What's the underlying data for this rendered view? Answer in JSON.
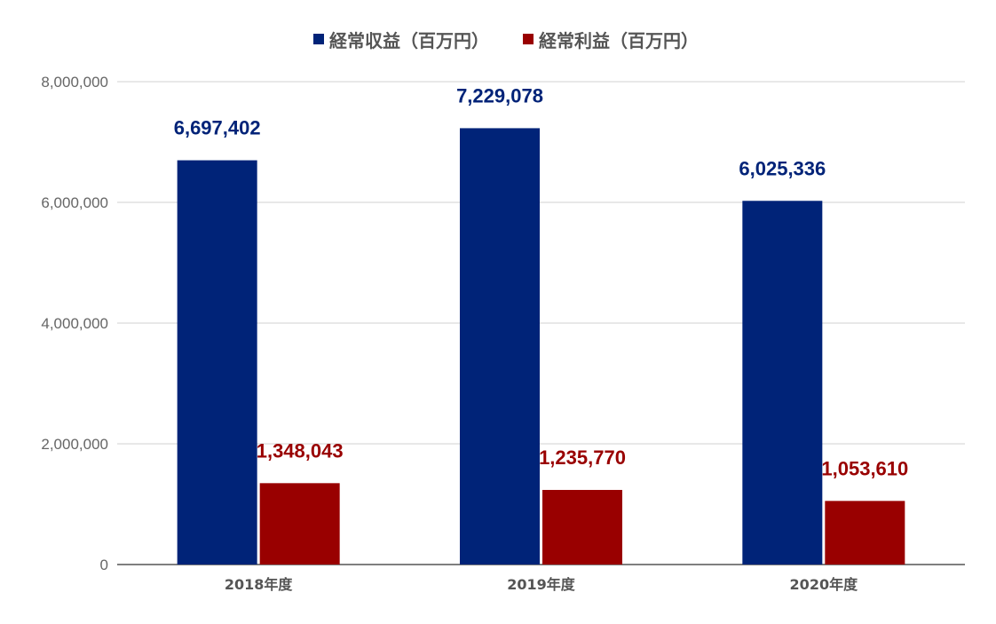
{
  "chart_data": {
    "type": "bar",
    "categories": [
      "2018年度",
      "2019年度",
      "2020年度"
    ],
    "series": [
      {
        "name": "経常収益（百万円）",
        "color": "#002378",
        "values": [
          6697402,
          7229078,
          6025336
        ],
        "labels": [
          "6,697,402",
          "7,229,078",
          "6,025,336"
        ]
      },
      {
        "name": "経常利益（百万円）",
        "color": "#990000",
        "values": [
          1348043,
          1235770,
          1053610
        ],
        "labels": [
          "1,348,043",
          "1,235,770",
          "1,053,610"
        ]
      }
    ],
    "yticks": [
      "0",
      "2,000,000",
      "4,000,000",
      "6,000,000",
      "8,000,000"
    ],
    "ylim": [
      0,
      8000000
    ],
    "grid": true,
    "legend_position": "top-center"
  }
}
